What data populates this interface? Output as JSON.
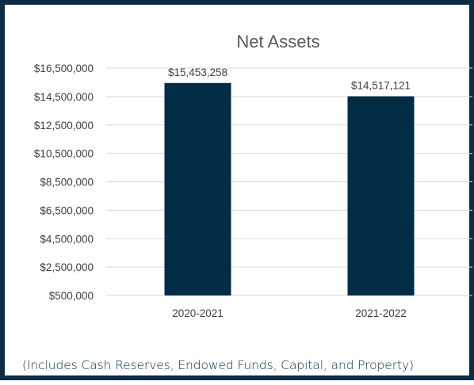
{
  "colors": {
    "bar": "#022b45",
    "frame": "#0d2b45",
    "grid": "#d9d9d9",
    "text": "#404040"
  },
  "chart_data": {
    "type": "bar",
    "title": "Net Assets",
    "categories": [
      "2020-2021",
      "2021-2022"
    ],
    "values": [
      15453258,
      14517121
    ],
    "data_labels": [
      "$15,453,258",
      "$14,517,121"
    ],
    "ylim": [
      500000,
      16500000
    ],
    "y_ticks": [
      500000,
      2500000,
      4500000,
      6500000,
      8500000,
      10500000,
      12500000,
      14500000,
      16500000
    ],
    "y_tick_labels": [
      "$500,000",
      "$2,500,000",
      "$4,500,000",
      "$6,500,000",
      "$8,500,000",
      "$10,500,000",
      "$12,500,000",
      "$14,500,000",
      "$16,500,000"
    ],
    "grid": true,
    "legend": "none",
    "xlabel": "",
    "ylabel": ""
  },
  "footnote": "(Includes Cash Reserves, Endowed Funds, Capital, and Property)"
}
